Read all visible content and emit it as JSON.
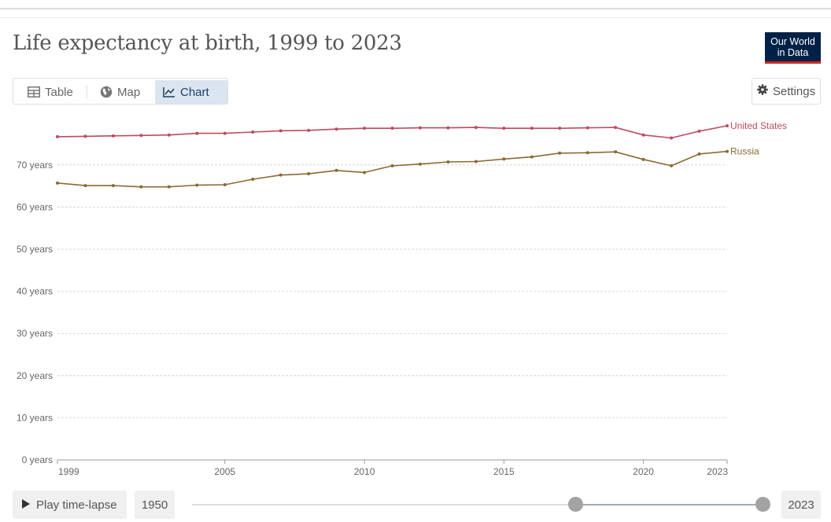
{
  "title": "Life expectancy at birth, 1999 to 2023",
  "logo": {
    "line1": "Our World",
    "line2": "in Data"
  },
  "tabs": [
    {
      "label": "Table",
      "icon": "table-icon",
      "active": false
    },
    {
      "label": "Map",
      "icon": "globe-icon",
      "active": false
    },
    {
      "label": "Chart",
      "icon": "line-chart-icon",
      "active": true
    }
  ],
  "settings": {
    "label": "Settings",
    "icon": "gear-icon"
  },
  "timeline": {
    "play_label": "Play time-lapse",
    "start_year": "1950",
    "end_year": "2023",
    "range_start_fraction": 0.67,
    "range_end_fraction": 1.0
  },
  "colors": {
    "united_states": "#be4a5f",
    "russia": "#8a6a33",
    "active_tab_bg": "#dbe5f0",
    "logo_bg": "#002147",
    "logo_accent": "#ce261e"
  },
  "chart_data": {
    "type": "line",
    "title": "Life expectancy at birth, 1999 to 2023",
    "xlabel": "",
    "ylabel": "",
    "xlim": [
      1999,
      2023
    ],
    "ylim": [
      0,
      80
    ],
    "y_ticks": [
      {
        "value": 0,
        "label": "0 years"
      },
      {
        "value": 10,
        "label": "10 years"
      },
      {
        "value": 20,
        "label": "20 years"
      },
      {
        "value": 30,
        "label": "30 years"
      },
      {
        "value": 40,
        "label": "40 years"
      },
      {
        "value": 50,
        "label": "50 years"
      },
      {
        "value": 60,
        "label": "60 years"
      },
      {
        "value": 70,
        "label": "70 years"
      }
    ],
    "x_ticks": [
      {
        "value": 1999,
        "label": "1999"
      },
      {
        "value": 2005,
        "label": "2005"
      },
      {
        "value": 2010,
        "label": "2010"
      },
      {
        "value": 2015,
        "label": "2015"
      },
      {
        "value": 2020,
        "label": "2020"
      },
      {
        "value": 2023,
        "label": "2023"
      }
    ],
    "grid": "horizontal dotted",
    "legend": "inline labels at right end of lines",
    "x": [
      1999,
      2000,
      2001,
      2002,
      2003,
      2004,
      2005,
      2006,
      2007,
      2008,
      2009,
      2010,
      2011,
      2012,
      2013,
      2014,
      2015,
      2016,
      2017,
      2018,
      2019,
      2020,
      2021,
      2022,
      2023
    ],
    "series": [
      {
        "name": "United States",
        "color": "#be4a5f",
        "values": [
          76.7,
          76.8,
          76.9,
          77.0,
          77.1,
          77.5,
          77.5,
          77.8,
          78.1,
          78.2,
          78.5,
          78.7,
          78.7,
          78.8,
          78.8,
          78.9,
          78.7,
          78.7,
          78.7,
          78.8,
          78.9,
          77.1,
          76.4,
          78.0,
          79.3
        ]
      },
      {
        "name": "Russia",
        "color": "#8a6a33",
        "values": [
          65.7,
          65.1,
          65.1,
          64.8,
          64.8,
          65.2,
          65.3,
          66.6,
          67.6,
          67.9,
          68.7,
          68.2,
          69.8,
          70.2,
          70.7,
          70.8,
          71.4,
          71.9,
          72.8,
          72.9,
          73.1,
          71.3,
          69.8,
          72.6,
          73.2
        ]
      }
    ]
  }
}
